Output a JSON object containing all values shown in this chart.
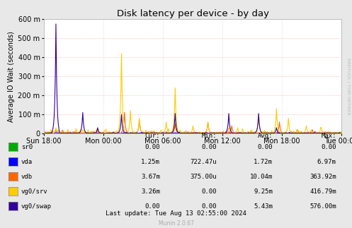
{
  "title": "Disk latency per device - by day",
  "ylabel": "Average IO Wait (seconds)",
  "bg_color": "#e8e8e8",
  "plot_bg_color": "#ffffff",
  "grid_color_h": "#ff9999",
  "grid_color_v": "#cccccc",
  "ylim": [
    0,
    0.0006
  ],
  "yticks": [
    0,
    0.0001,
    0.0002,
    0.0003,
    0.0004,
    0.0005,
    0.0006
  ],
  "ytick_labels": [
    "0",
    "100 m",
    "200 m",
    "300 m",
    "400 m",
    "500 m",
    "600 m"
  ],
  "xtick_labels": [
    "Sun 18:00",
    "Mon 00:00",
    "Mon 06:00",
    "Mon 12:00",
    "Mon 18:00",
    "Tue 00:00"
  ],
  "num_points": 500,
  "series": [
    {
      "name": "sr0",
      "color": "#00aa00",
      "lw": 0.8
    },
    {
      "name": "vda",
      "color": "#0000ff",
      "lw": 0.8
    },
    {
      "name": "vdb",
      "color": "#ff6600",
      "lw": 0.8
    },
    {
      "name": "vg0/srv",
      "color": "#ffcc00",
      "lw": 0.8
    },
    {
      "name": "vg0/swap",
      "color": "#330099",
      "lw": 0.8
    }
  ],
  "legend_colors": {
    "sr0": "#00aa00",
    "vda": "#0000ff",
    "vdb": "#ff6600",
    "vg0/srv": "#ffcc00",
    "vg0/swap": "#330099"
  },
  "legend_data": {
    "headers": [
      "Cur:",
      "Min:",
      "Avg:",
      "Max:"
    ],
    "rows": [
      [
        "sr0",
        "0.00",
        "0.00",
        "0.00",
        "0.00"
      ],
      [
        "vda",
        "1.25m",
        "722.47u",
        "1.72m",
        "6.97m"
      ],
      [
        "vdb",
        "3.67m",
        "375.00u",
        "10.04m",
        "363.92m"
      ],
      [
        "vg0/srv",
        "3.26m",
        "0.00",
        "9.25m",
        "416.79m"
      ],
      [
        "vg0/swap",
        "0.00",
        "0.00",
        "5.43m",
        "576.00m"
      ]
    ]
  },
  "footer": "Last update: Tue Aug 13 02:55:00 2024",
  "munin_label": "Munin 2.0.67",
  "rrdtool_label": "RRDTOOL / TOBI OETIKER"
}
